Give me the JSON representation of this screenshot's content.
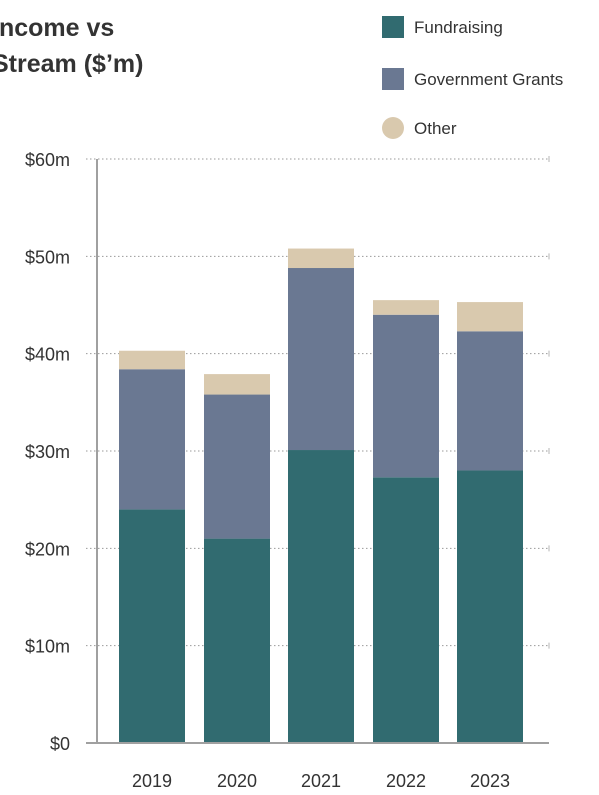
{
  "chart_data": {
    "type": "bar",
    "stacked": true,
    "title": "Income vs Stream ($’m)",
    "title_lines": [
      "Income vs",
      "Stream ($’m)"
    ],
    "categories": [
      "2019",
      "2020",
      "2021",
      "2022",
      "2023"
    ],
    "series": [
      {
        "name": "Fundraising",
        "color": "#316b70",
        "values": [
          24.0,
          21.0,
          30.1,
          27.3,
          28.0
        ]
      },
      {
        "name": "Government Grants",
        "color": "#6a7892",
        "values": [
          14.4,
          14.8,
          18.7,
          16.7,
          14.3
        ]
      },
      {
        "name": "Other",
        "color": "#d9c9ae",
        "values": [
          1.9,
          2.1,
          2.0,
          1.5,
          3.0
        ]
      }
    ],
    "ylim": [
      0,
      60
    ],
    "yticks": [
      0,
      10,
      20,
      30,
      40,
      50,
      60
    ],
    "ytick_labels": [
      "$0",
      "$10m",
      "$20m",
      "$30m",
      "$40m",
      "$50m",
      "$60m"
    ],
    "xlabel": "",
    "ylabel": "",
    "grid": true,
    "legend_position": "top-right"
  }
}
